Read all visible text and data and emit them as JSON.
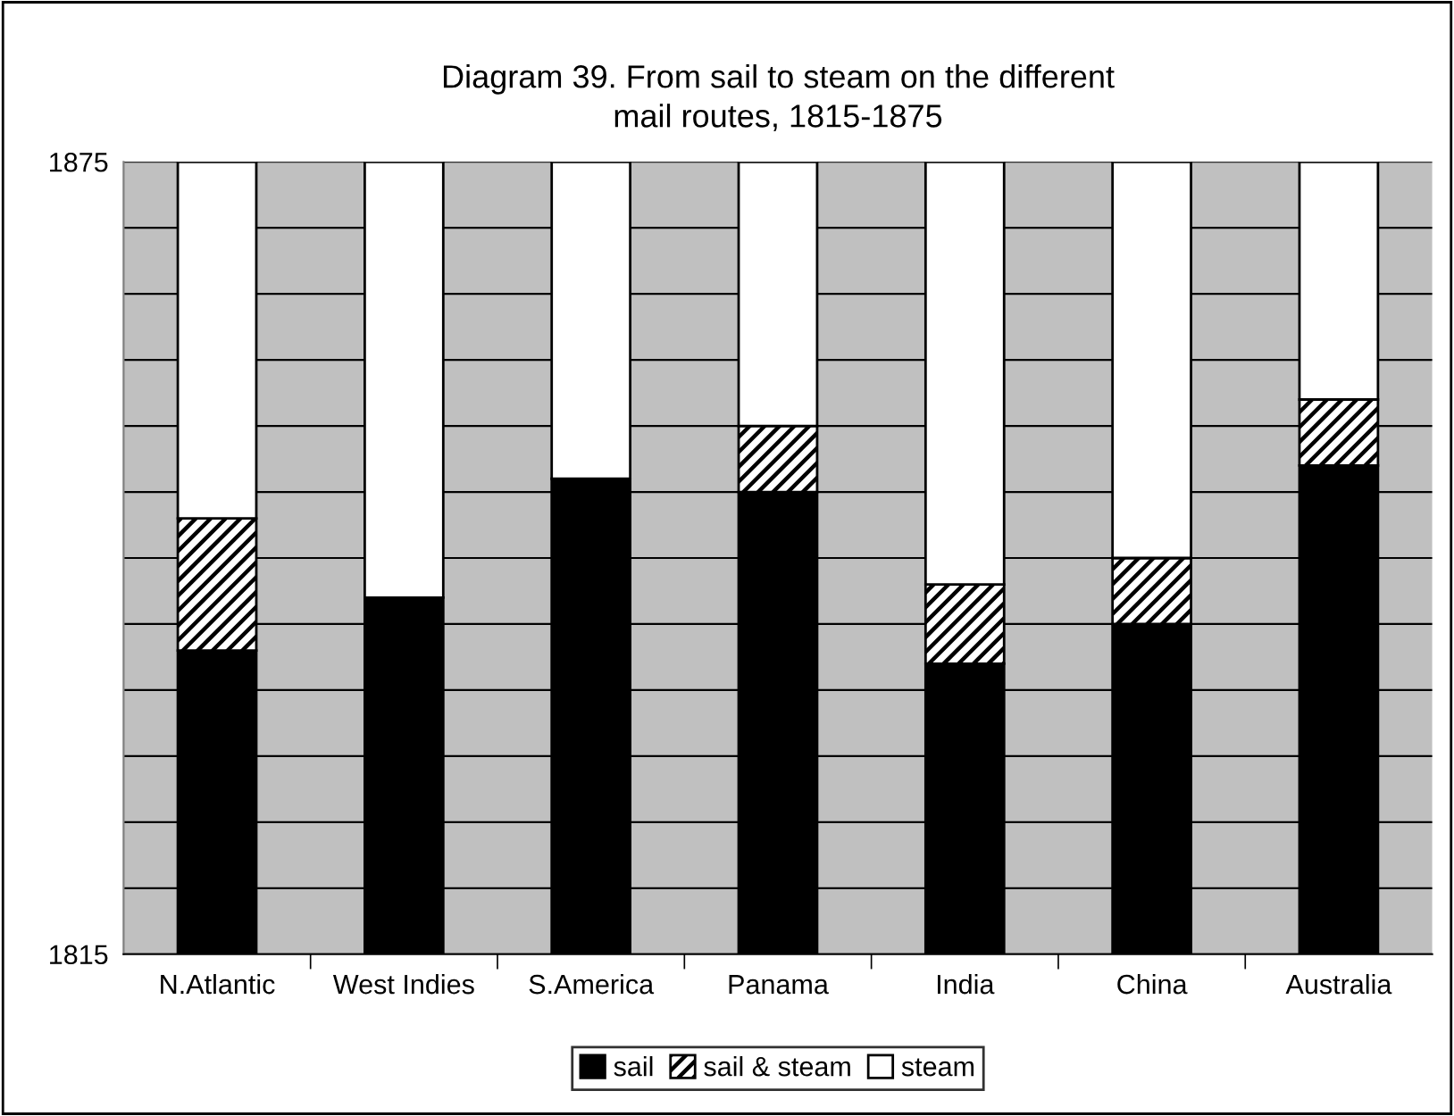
{
  "chart_data": {
    "type": "bar",
    "title": "Diagram 39. From sail to steam on the different\nmail routes, 1815-1875",
    "categories": [
      "N.Atlantic",
      "West Indies",
      "S.America",
      "Panama",
      "India",
      "China",
      "Australia"
    ],
    "series": [
      {
        "name": "sail",
        "color": "#000000",
        "base": [
          1815,
          1815,
          1815,
          1815,
          1815,
          1815,
          1815
        ],
        "values": [
          23,
          27,
          36,
          35,
          22,
          25,
          37
        ]
      },
      {
        "name": "sail & steam",
        "color": "#ffffff",
        "base": [
          1838,
          null,
          null,
          1850,
          1837,
          1840,
          1852
        ],
        "values": [
          10,
          null,
          null,
          5,
          6,
          5,
          5
        ]
      },
      {
        "name": "steam",
        "color": "#ffffff",
        "base": [
          1848,
          1842,
          1851,
          1855,
          1843,
          1845,
          1857
        ],
        "values": [
          27,
          33,
          24,
          20,
          32,
          30,
          18
        ]
      }
    ],
    "ylim": [
      1815,
      1875
    ],
    "yticks": [
      1815,
      {
        "value": 1820,
        "label": null
      },
      {
        "value": 1825,
        "label": null
      },
      {
        "value": 1830,
        "label": null
      },
      {
        "value": 1835,
        "label": null
      },
      {
        "value": 1840,
        "label": null
      },
      {
        "value": 1845,
        "label": null
      },
      {
        "value": 1850,
        "label": null
      },
      {
        "value": 1855,
        "label": null
      },
      {
        "value": 1860,
        "label": null
      },
      {
        "value": 1865,
        "label": null
      },
      {
        "value": 1870,
        "label": null
      },
      1875
    ],
    "grid": "y",
    "legend": "bottom"
  }
}
